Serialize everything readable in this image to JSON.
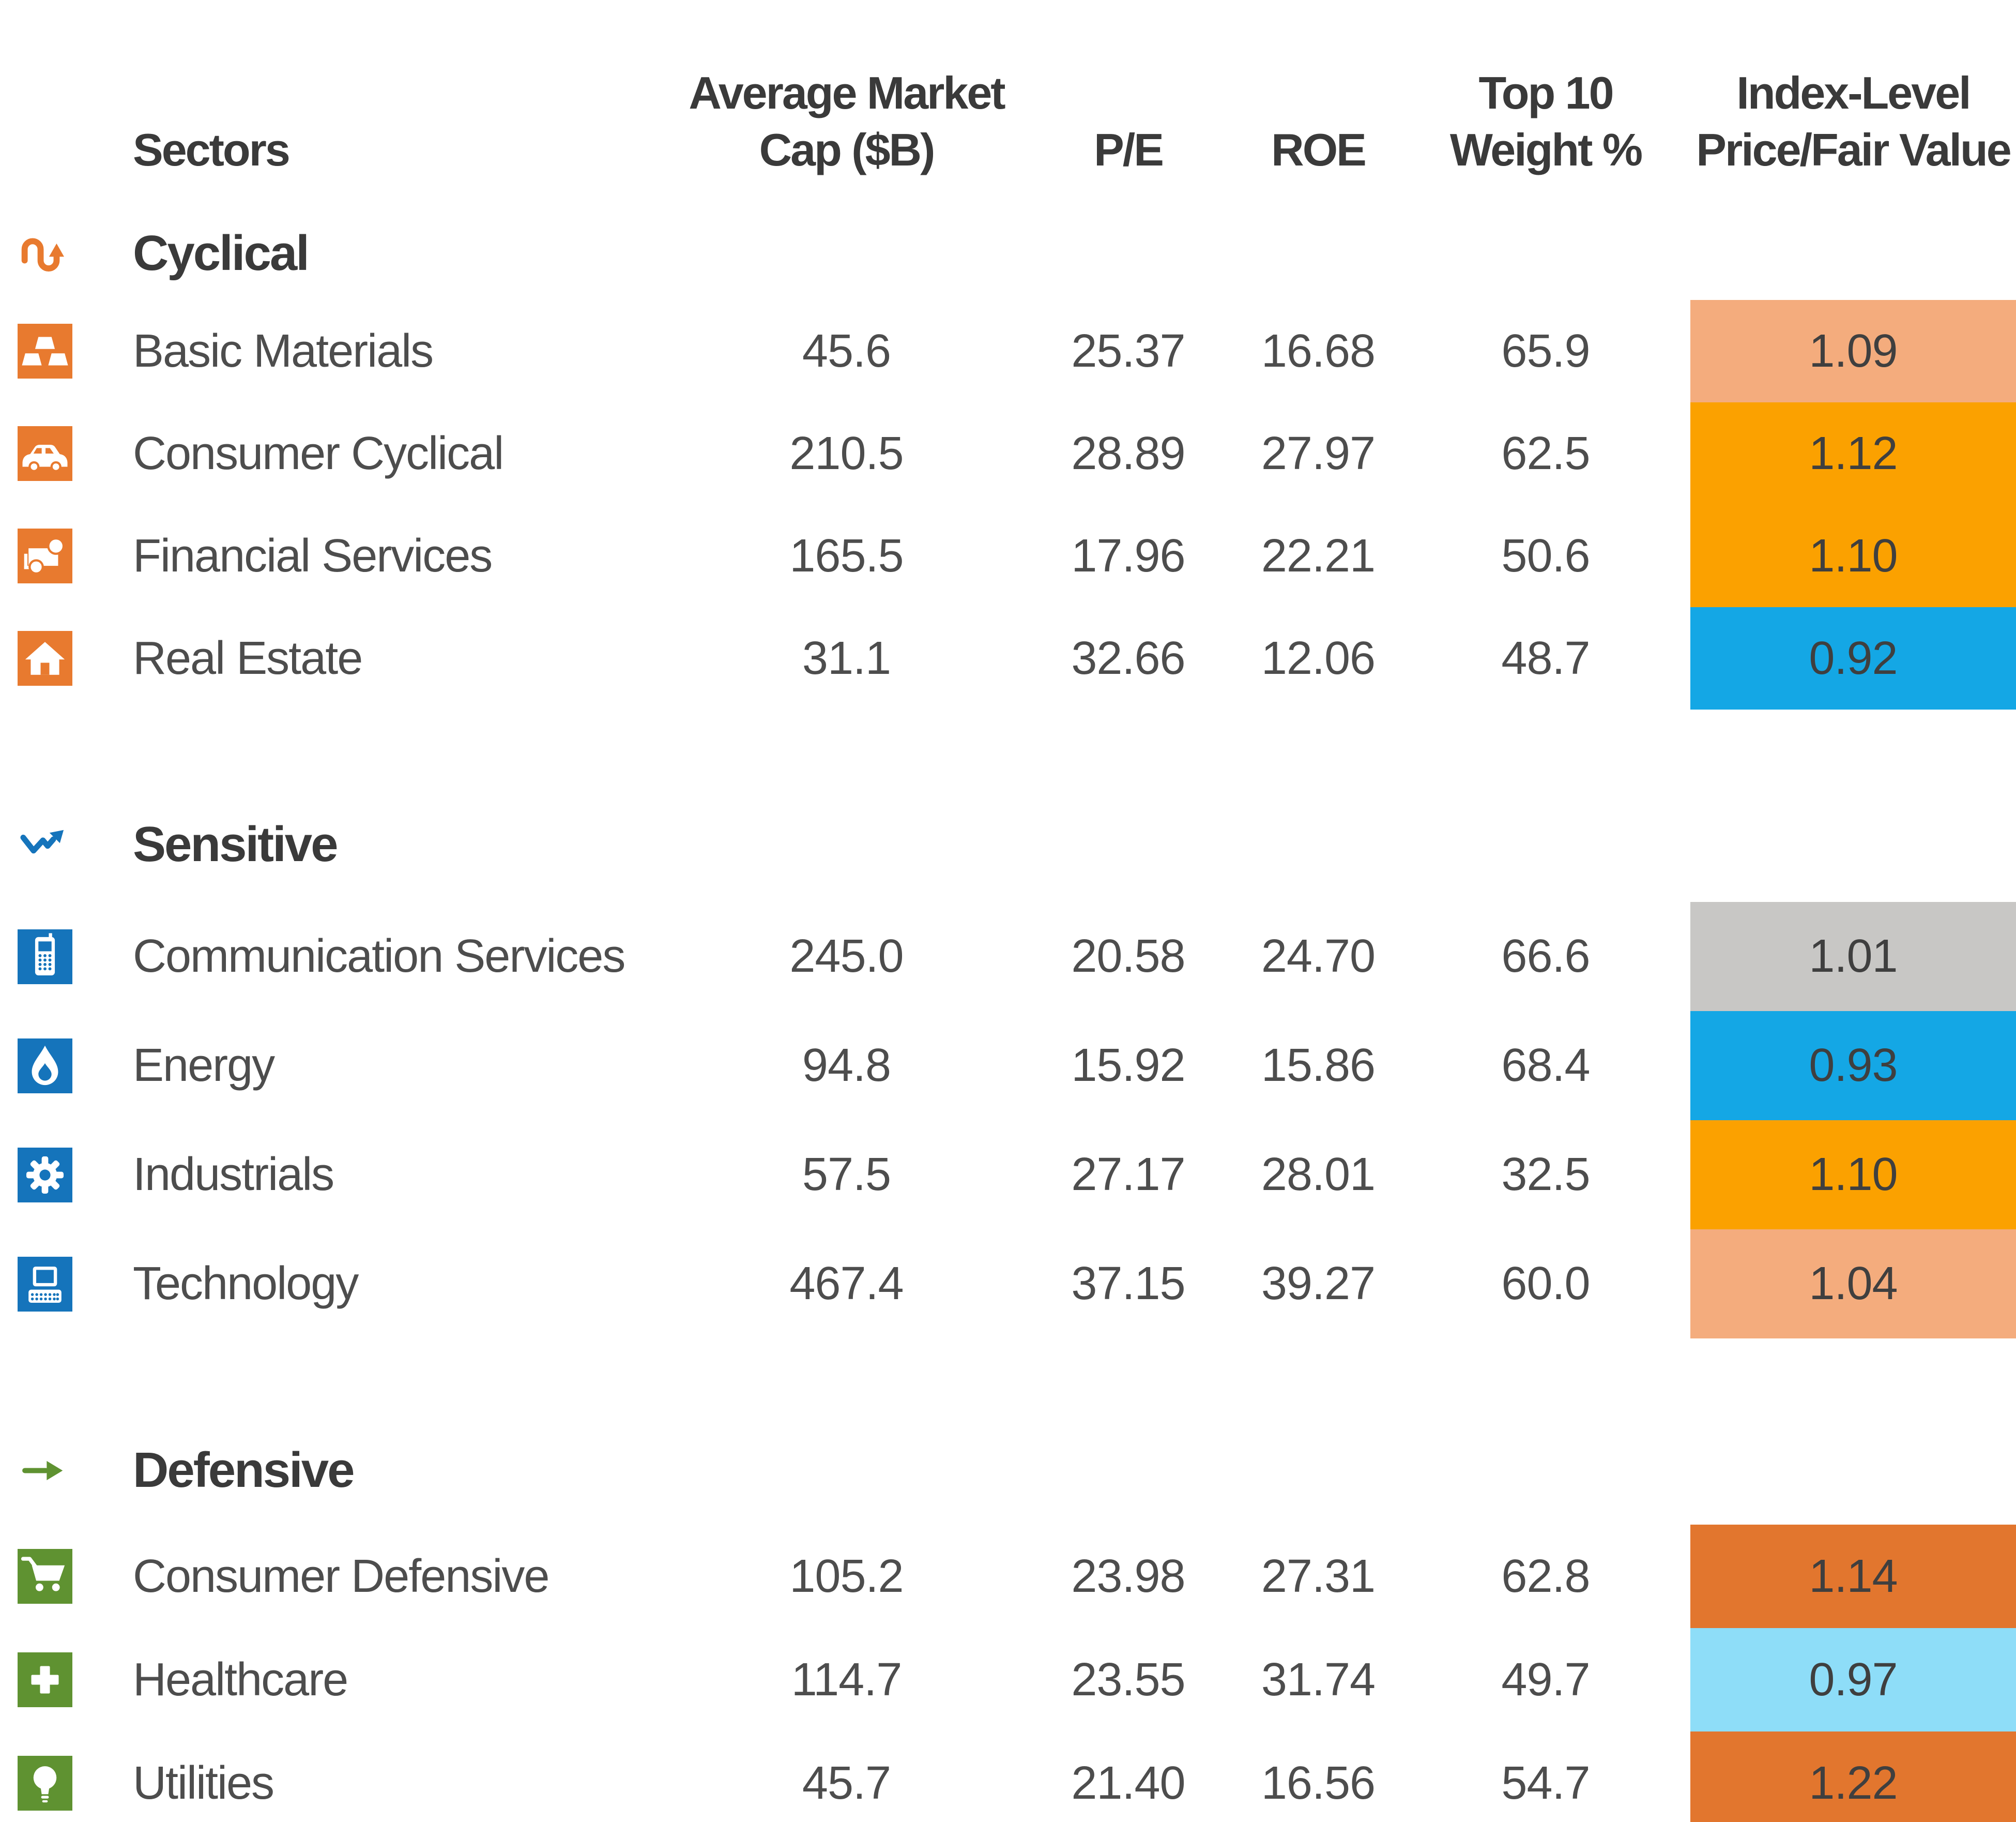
{
  "table": {
    "columns": {
      "sectors": "Sectors",
      "market_cap_line1": "Average Market",
      "market_cap_line2": "Cap ($B)",
      "pe": "P/E",
      "roe": "ROE",
      "weight_line1": "Top 10",
      "weight_line2": "Weight %",
      "pfv_line1": "Index-Level",
      "pfv_line2": "Price/Fair Value"
    },
    "sections": [
      {
        "name": "Cyclical",
        "icon": "cyclical-icon",
        "color": "#E87A2F",
        "rows": [
          {
            "sector": "Basic Materials",
            "icon": "basic-materials-icon",
            "market_cap": "45.6",
            "pe": "25.37",
            "roe": "16.68",
            "weight": "65.9",
            "pfv": "1.09",
            "pfv_color": "#F4AC7D"
          },
          {
            "sector": "Consumer Cyclical",
            "icon": "consumer-cyclical-icon",
            "market_cap": "210.5",
            "pe": "28.89",
            "roe": "27.97",
            "weight": "62.5",
            "pfv": "1.12",
            "pfv_color": "#FBA100"
          },
          {
            "sector": "Financial Services",
            "icon": "financial-services-icon",
            "market_cap": "165.5",
            "pe": "17.96",
            "roe": "22.21",
            "weight": "50.6",
            "pfv": "1.10",
            "pfv_color": "#FBA100"
          },
          {
            "sector": "Real Estate",
            "icon": "real-estate-icon",
            "market_cap": "31.1",
            "pe": "32.66",
            "roe": "12.06",
            "weight": "48.7",
            "pfv": "0.92",
            "pfv_color": "#14A7E5"
          }
        ]
      },
      {
        "name": "Sensitive",
        "icon": "sensitive-icon",
        "color": "#1574BB",
        "rows": [
          {
            "sector": "Communication Services",
            "icon": "communication-services-icon",
            "market_cap": "245.0",
            "pe": "20.58",
            "roe": "24.70",
            "weight": "66.6",
            "pfv": "1.01",
            "pfv_color": "#C8C7C5"
          },
          {
            "sector": "Energy",
            "icon": "energy-icon",
            "market_cap": "94.8",
            "pe": "15.92",
            "roe": "15.86",
            "weight": "68.4",
            "pfv": "0.93",
            "pfv_color": "#14A7E5"
          },
          {
            "sector": "Industrials",
            "icon": "industrials-icon",
            "market_cap": "57.5",
            "pe": "27.17",
            "roe": "28.01",
            "weight": "32.5",
            "pfv": "1.10",
            "pfv_color": "#FBA100"
          },
          {
            "sector": "Technology",
            "icon": "technology-icon",
            "market_cap": "467.4",
            "pe": "37.15",
            "roe": "39.27",
            "weight": "60.0",
            "pfv": "1.04",
            "pfv_color": "#F4AC7D"
          }
        ]
      },
      {
        "name": "Defensive",
        "icon": "defensive-icon",
        "color": "#5F9231",
        "rows": [
          {
            "sector": "Consumer Defensive",
            "icon": "consumer-defensive-icon",
            "market_cap": "105.2",
            "pe": "23.98",
            "roe": "27.31",
            "weight": "62.8",
            "pfv": "1.14",
            "pfv_color": "#E2762E"
          },
          {
            "sector": "Healthcare",
            "icon": "healthcare-icon",
            "market_cap": "114.7",
            "pe": "23.55",
            "roe": "31.74",
            "weight": "49.7",
            "pfv": "0.97",
            "pfv_color": "#8EDDF8"
          },
          {
            "sector": "Utilities",
            "icon": "utilities-icon",
            "market_cap": "45.7",
            "pe": "21.40",
            "roe": "16.56",
            "weight": "54.7",
            "pfv": "1.22",
            "pfv_color": "#E2762E"
          }
        ]
      }
    ]
  },
  "chart_data": {
    "type": "table",
    "columns": [
      "Sectors",
      "Average Market Cap ($B)",
      "P/E",
      "ROE",
      "Top 10 Weight %",
      "Index-Level Price/Fair Value"
    ],
    "groups": [
      {
        "supersector": "Cyclical",
        "rows": [
          {
            "sector": "Basic Materials",
            "avg_market_cap_b": 45.6,
            "pe": 25.37,
            "roe": 16.68,
            "top10_weight_pct": 65.9,
            "price_fair_value": 1.09
          },
          {
            "sector": "Consumer Cyclical",
            "avg_market_cap_b": 210.5,
            "pe": 28.89,
            "roe": 27.97,
            "top10_weight_pct": 62.5,
            "price_fair_value": 1.12
          },
          {
            "sector": "Financial Services",
            "avg_market_cap_b": 165.5,
            "pe": 17.96,
            "roe": 22.21,
            "top10_weight_pct": 50.6,
            "price_fair_value": 1.1
          },
          {
            "sector": "Real Estate",
            "avg_market_cap_b": 31.1,
            "pe": 32.66,
            "roe": 12.06,
            "top10_weight_pct": 48.7,
            "price_fair_value": 0.92
          }
        ]
      },
      {
        "supersector": "Sensitive",
        "rows": [
          {
            "sector": "Communication Services",
            "avg_market_cap_b": 245.0,
            "pe": 20.58,
            "roe": 24.7,
            "top10_weight_pct": 66.6,
            "price_fair_value": 1.01
          },
          {
            "sector": "Energy",
            "avg_market_cap_b": 94.8,
            "pe": 15.92,
            "roe": 15.86,
            "top10_weight_pct": 68.4,
            "price_fair_value": 0.93
          },
          {
            "sector": "Industrials",
            "avg_market_cap_b": 57.5,
            "pe": 27.17,
            "roe": 28.01,
            "top10_weight_pct": 32.5,
            "price_fair_value": 1.1
          },
          {
            "sector": "Technology",
            "avg_market_cap_b": 467.4,
            "pe": 37.15,
            "roe": 39.27,
            "top10_weight_pct": 60.0,
            "price_fair_value": 1.04
          }
        ]
      },
      {
        "supersector": "Defensive",
        "rows": [
          {
            "sector": "Consumer Defensive",
            "avg_market_cap_b": 105.2,
            "pe": 23.98,
            "roe": 27.31,
            "top10_weight_pct": 62.8,
            "price_fair_value": 1.14
          },
          {
            "sector": "Healthcare",
            "avg_market_cap_b": 114.7,
            "pe": 23.55,
            "roe": 31.74,
            "top10_weight_pct": 49.7,
            "price_fair_value": 0.97
          },
          {
            "sector": "Utilities",
            "avg_market_cap_b": 45.7,
            "pe": 21.4,
            "roe": 16.56,
            "top10_weight_pct": 54.7,
            "price_fair_value": 1.22
          }
        ]
      }
    ],
    "legend_colors": {
      "strong_undervalued_blue": "#14A7E5",
      "mild_undervalued_light_blue": "#8EDDF8",
      "fair_gray": "#C8C7C5",
      "mild_overvalued_salmon": "#F4AC7D",
      "overvalued_orange": "#FBA100",
      "strong_overvalued_dark_orange": "#E2762E"
    }
  }
}
